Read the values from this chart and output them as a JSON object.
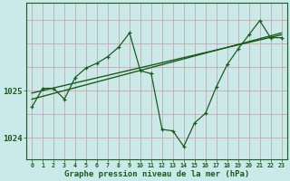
{
  "background_color": "#caeaea",
  "plot_bg_color": "#caeaea",
  "grid_color": "#b0cccc",
  "line_color": "#1a5c1a",
  "xlabel": "Graphe pression niveau de la mer (hPa)",
  "xlim": [
    -0.5,
    23.5
  ],
  "ylim": [
    1023.55,
    1026.85
  ],
  "yticks": [
    1024,
    1025
  ],
  "xticks": [
    0,
    1,
    2,
    3,
    4,
    5,
    6,
    7,
    8,
    9,
    10,
    11,
    12,
    13,
    14,
    15,
    16,
    17,
    18,
    19,
    20,
    21,
    22,
    23
  ],
  "series1_x": [
    0,
    1,
    2,
    3,
    4,
    5,
    6,
    7,
    8,
    9,
    10,
    11,
    12,
    13,
    14,
    15,
    16,
    17,
    18,
    19,
    20,
    21,
    22,
    23
  ],
  "series1_y": [
    1024.65,
    1025.05,
    1025.05,
    1024.82,
    1025.28,
    1025.48,
    1025.58,
    1025.72,
    1025.92,
    1026.22,
    1025.42,
    1025.36,
    1024.18,
    1024.15,
    1023.82,
    1024.32,
    1024.52,
    1025.08,
    1025.55,
    1025.88,
    1026.18,
    1026.48,
    1026.12,
    1026.12
  ],
  "series2_x": [
    0,
    23
  ],
  "series2_y": [
    1024.82,
    1026.22
  ],
  "series3_x": [
    0,
    23
  ],
  "series3_y": [
    1024.95,
    1026.18
  ],
  "hgrid_y": [
    1024.0,
    1024.5,
    1025.0,
    1025.5,
    1026.0,
    1026.5
  ]
}
